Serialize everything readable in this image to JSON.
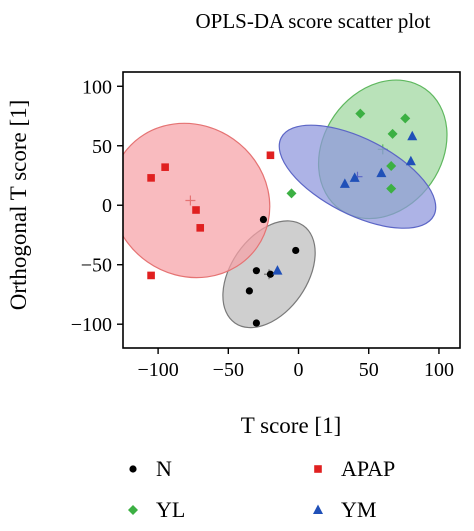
{
  "chart_data": {
    "type": "scatter",
    "title": "OPLS-DA score scatter plot",
    "xlabel": "T score [1]",
    "ylabel": "Orthogonal T score [1]",
    "xlim": [
      -125,
      115
    ],
    "ylim": [
      -120,
      112
    ],
    "xticks": [
      -100,
      -50,
      0,
      50,
      100
    ],
    "yticks": [
      -100,
      -50,
      0,
      50,
      100
    ],
    "grid": false,
    "legend_position": "bottom",
    "series": [
      {
        "name": "N",
        "color": "#000000",
        "marker": "circle",
        "points": [
          [
            -25,
            -12
          ],
          [
            -2,
            -38
          ],
          [
            -30,
            -55
          ],
          [
            -20,
            -58
          ],
          [
            -35,
            -72
          ],
          [
            -30,
            -99
          ]
        ],
        "ellipse": {
          "cx": -21,
          "cy": -58,
          "rx": 27,
          "ry": 50,
          "rotate": -35,
          "fill": "#bdbdbd",
          "stroke": "#7a7a7a"
        }
      },
      {
        "name": "APAP",
        "color": "#e02020",
        "marker": "square",
        "points": [
          [
            -95,
            32
          ],
          [
            -105,
            23
          ],
          [
            -20,
            42
          ],
          [
            -73,
            -4
          ],
          [
            -70,
            -19
          ],
          [
            -105,
            -59
          ]
        ],
        "ellipse": {
          "cx": -77,
          "cy": 4,
          "rx": 58,
          "ry": 63,
          "rotate": -35,
          "fill": "#f7a1a6",
          "stroke": "#e57373"
        }
      },
      {
        "name": "YL",
        "color": "#3cb043",
        "marker": "diamond",
        "points": [
          [
            44,
            77
          ],
          [
            67,
            60
          ],
          [
            76,
            73
          ],
          [
            -5,
            10
          ],
          [
            66,
            33
          ],
          [
            66,
            14
          ]
        ],
        "ellipse": {
          "cx": 60,
          "cy": 47,
          "rx": 42,
          "ry": 62,
          "rotate": -35,
          "fill": "#9ed79e",
          "stroke": "#5fb85f"
        }
      },
      {
        "name": "YM",
        "color": "#2050b8",
        "marker": "triangle",
        "points": [
          [
            81,
            58
          ],
          [
            80,
            37
          ],
          [
            33,
            18
          ],
          [
            40,
            23
          ],
          [
            59,
            27
          ],
          [
            -15,
            -55
          ]
        ],
        "ellipse": {
          "cx": 42,
          "cy": 24,
          "rx": 27,
          "ry": 72,
          "rotate": 63,
          "fill": "#8e96dc",
          "stroke": "#5c66c6"
        }
      }
    ]
  }
}
